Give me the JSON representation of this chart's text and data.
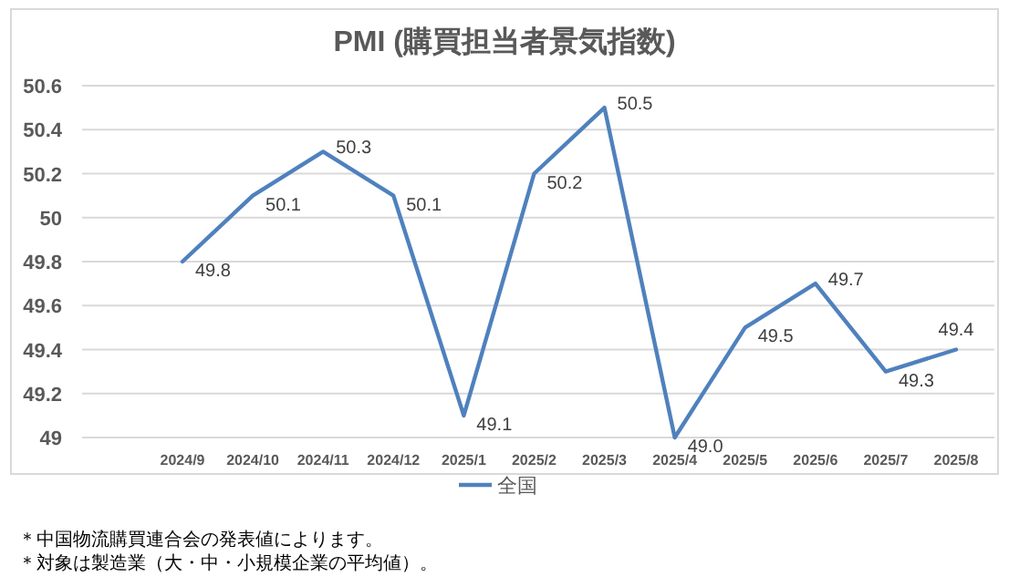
{
  "chart_data": {
    "type": "line",
    "title": "PMI (購買担当者景気指数)",
    "categories": [
      "2024/9",
      "2024/10",
      "2024/11",
      "2024/12",
      "2025/1",
      "2025/2",
      "2025/3",
      "2025/4",
      "2025/5",
      "2025/6",
      "2025/7",
      "2025/8"
    ],
    "series": [
      {
        "name": "全国",
        "color": "#4f81bd",
        "values": [
          49.8,
          50.1,
          50.3,
          50.1,
          49.1,
          50.2,
          50.5,
          49.0,
          49.5,
          49.7,
          49.3,
          49.4
        ],
        "value_labels": [
          "49.8",
          "50.1",
          "50.3",
          "50.1",
          "49.1",
          "50.2",
          "50.5",
          "49.0",
          "49.5",
          "49.7",
          "49.3",
          "49.4"
        ]
      }
    ],
    "ylim": [
      49,
      50.6
    ],
    "yticks": [
      49,
      49.2,
      49.4,
      49.6,
      49.8,
      50,
      50.2,
      50.4,
      50.6
    ],
    "grid": "y",
    "legend": "bottom",
    "marker": "none",
    "line_style": "solid",
    "annotations": [
      "＊中国物流購買連合会の発表値によります。",
      "＊対象は製造業（大・中・小規模企業の平均値）。"
    ]
  }
}
